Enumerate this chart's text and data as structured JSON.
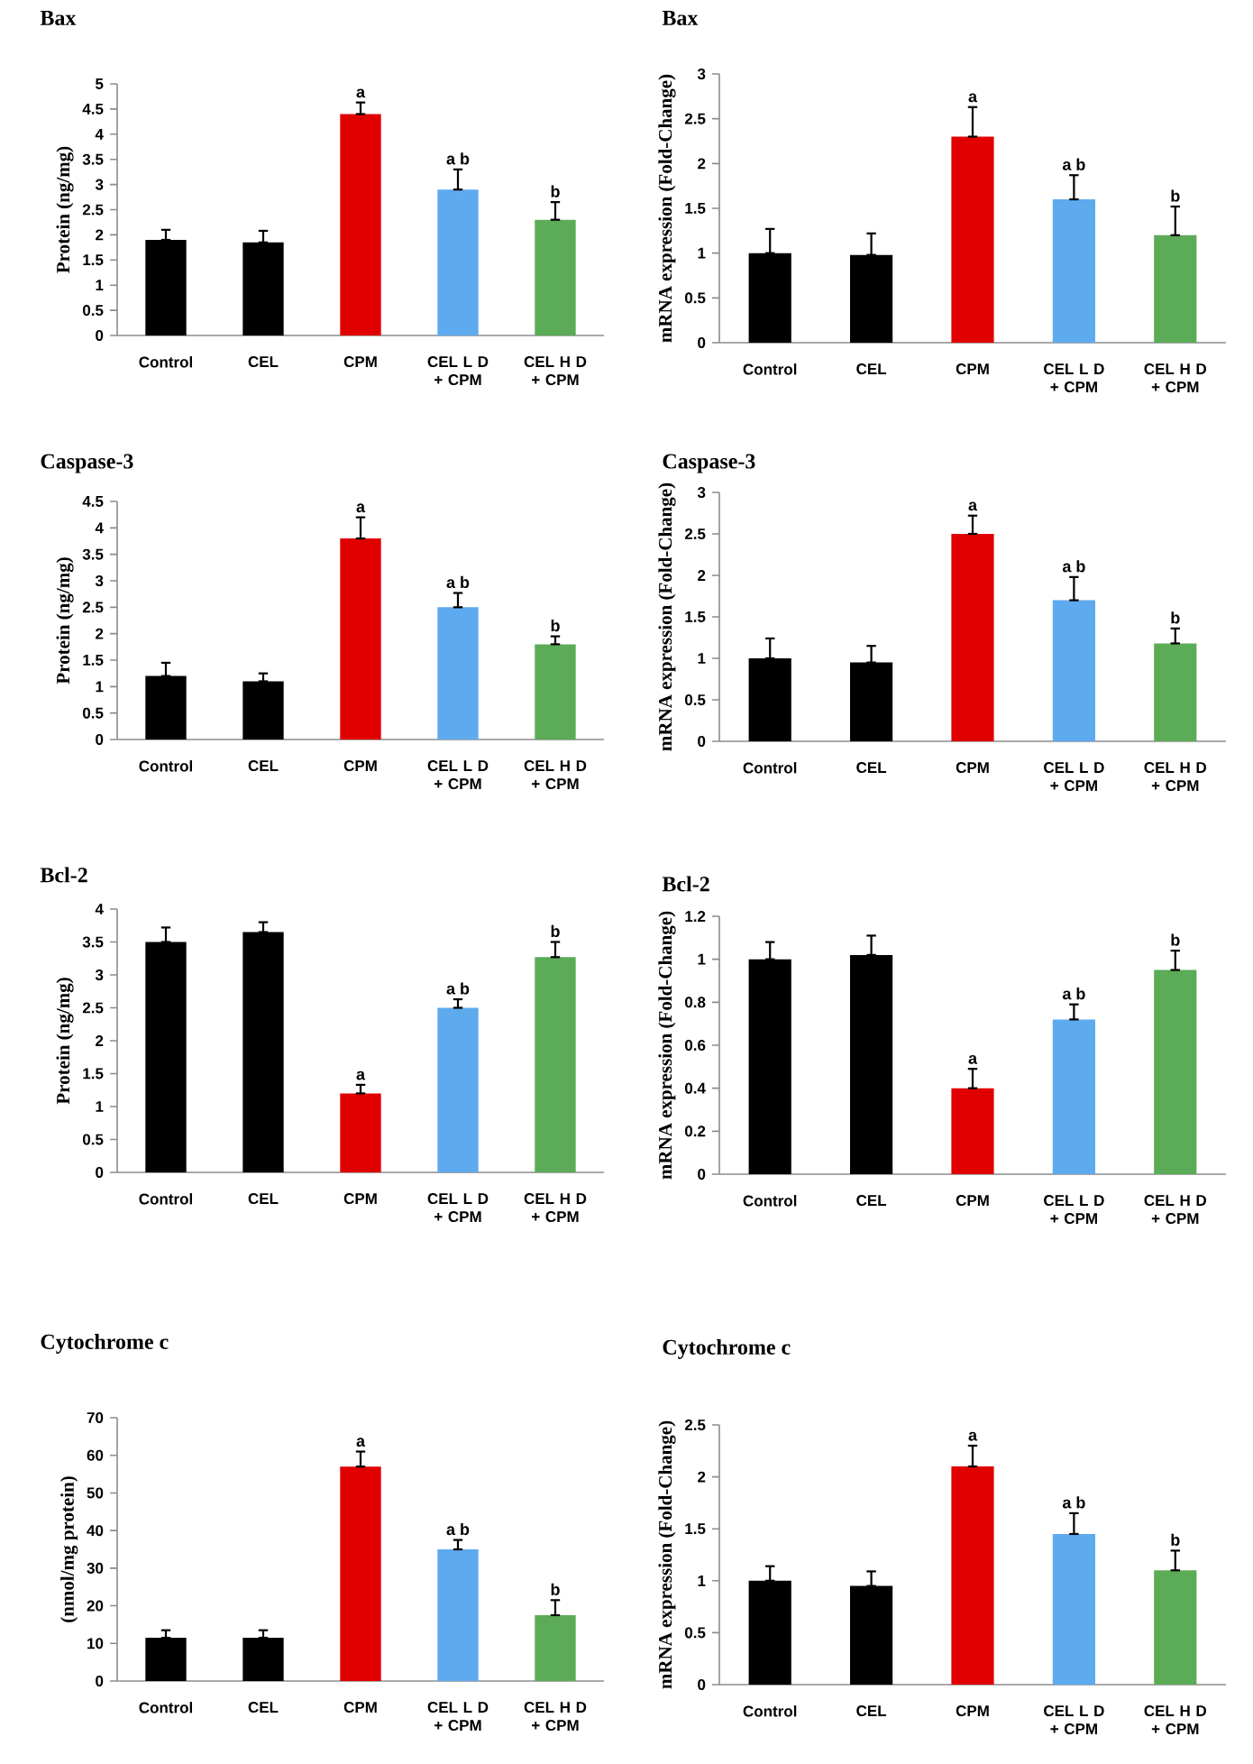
{
  "chart_data": [
    {
      "type": "bar",
      "title": "Bax",
      "ylabel": "Protein (ng/mg)",
      "categories": [
        "Control",
        "CEL",
        "CPM",
        "CEL L D + CPM",
        "CEL H D + CPM"
      ],
      "values": [
        1.9,
        1.85,
        4.4,
        2.9,
        2.3
      ],
      "colors": [
        "#000000",
        "#000000",
        "#e00000",
        "#5eaaee",
        "#5cab57"
      ],
      "errors": [
        [
          1.9,
          2.1
        ],
        [
          1.85,
          2.08
        ],
        [
          4.4,
          4.63
        ],
        [
          2.9,
          3.3
        ],
        [
          2.3,
          2.65
        ]
      ],
      "ylim": [
        0,
        5
      ],
      "yticks": [
        0,
        0.5,
        1,
        1.5,
        2,
        2.5,
        3,
        3.5,
        4,
        4.5,
        5
      ],
      "annotations": [
        {
          "text": "a",
          "x": "CPM",
          "y": 4.63
        },
        {
          "text": "a b",
          "x": "CEL L D + CPM",
          "y": 3.3
        },
        {
          "text": "b",
          "x": "CEL H D + CPM",
          "y": 2.65
        }
      ]
    },
    {
      "type": "bar",
      "title": "Bax",
      "ylabel": "mRNA expression (Fold-Change)",
      "categories": [
        "Control",
        "CEL",
        "CPM",
        "CEL L D + CPM",
        "CEL H D + CPM"
      ],
      "values": [
        1.0,
        0.98,
        2.3,
        1.6,
        1.2
      ],
      "colors": [
        "#000000",
        "#000000",
        "#e00000",
        "#5eaaee",
        "#5cab57"
      ],
      "errors": [
        [
          1.0,
          1.27
        ],
        [
          0.98,
          1.22
        ],
        [
          2.3,
          2.63
        ],
        [
          1.6,
          1.87
        ],
        [
          1.2,
          1.52
        ]
      ],
      "ylim": [
        0,
        3
      ],
      "yticks": [
        0,
        0.5,
        1,
        1.5,
        2,
        2.5,
        3
      ],
      "annotations": [
        {
          "text": "a",
          "x": "CPM",
          "y": 2.63
        },
        {
          "text": "a b",
          "x": "CEL L D + CPM",
          "y": 1.87
        },
        {
          "text": "b",
          "x": "CEL H D + CPM",
          "y": 1.52
        }
      ]
    },
    {
      "type": "bar",
      "title": "Caspase-3",
      "ylabel": "Protein (ng/mg)",
      "categories": [
        "Control",
        "CEL",
        "CPM",
        "CEL L D + CPM",
        "CEL H D + CPM"
      ],
      "values": [
        1.2,
        1.1,
        3.8,
        2.5,
        1.8
      ],
      "colors": [
        "#000000",
        "#000000",
        "#e00000",
        "#5eaaee",
        "#5cab57"
      ],
      "errors": [
        [
          1.2,
          1.45
        ],
        [
          1.1,
          1.25
        ],
        [
          3.8,
          4.2
        ],
        [
          2.5,
          2.77
        ],
        [
          1.8,
          1.95
        ]
      ],
      "ylim": [
        0,
        4.5
      ],
      "yticks": [
        0,
        0.5,
        1,
        1.5,
        2,
        2.5,
        3,
        3.5,
        4,
        4.5
      ],
      "annotations": [
        {
          "text": "a",
          "x": "CPM",
          "y": 4.2
        },
        {
          "text": "a b",
          "x": "CEL L D + CPM",
          "y": 2.77
        },
        {
          "text": "b",
          "x": "CEL H D + CPM",
          "y": 1.95
        }
      ]
    },
    {
      "type": "bar",
      "title": "Caspase-3",
      "ylabel": "mRNA expression (Fold-Change)",
      "categories": [
        "Control",
        "CEL",
        "CPM",
        "CEL L D + CPM",
        "CEL H D + CPM"
      ],
      "values": [
        1.0,
        0.95,
        2.5,
        1.7,
        1.18
      ],
      "colors": [
        "#000000",
        "#000000",
        "#e00000",
        "#5eaaee",
        "#5cab57"
      ],
      "errors": [
        [
          1.0,
          1.24
        ],
        [
          0.95,
          1.15
        ],
        [
          2.5,
          2.72
        ],
        [
          1.7,
          1.98
        ],
        [
          1.18,
          1.36
        ]
      ],
      "ylim": [
        0,
        3
      ],
      "yticks": [
        0,
        0.5,
        1,
        1.5,
        2,
        2.5,
        3
      ],
      "annotations": [
        {
          "text": "a",
          "x": "CPM",
          "y": 2.72
        },
        {
          "text": "a b",
          "x": "CEL L D + CPM",
          "y": 1.98
        },
        {
          "text": "b",
          "x": "CEL H D + CPM",
          "y": 1.36
        }
      ]
    },
    {
      "type": "bar",
      "title": "Bcl-2",
      "ylabel": "Protein (ng/mg)",
      "categories": [
        "Control",
        "CEL",
        "CPM",
        "CEL L D + CPM",
        "CEL H D + CPM"
      ],
      "values": [
        3.5,
        3.65,
        1.2,
        2.5,
        3.27
      ],
      "colors": [
        "#000000",
        "#000000",
        "#e00000",
        "#5eaaee",
        "#5cab57"
      ],
      "errors": [
        [
          3.5,
          3.72
        ],
        [
          3.65,
          3.8
        ],
        [
          1.2,
          1.33
        ],
        [
          2.5,
          2.63
        ],
        [
          3.27,
          3.5
        ]
      ],
      "ylim": [
        0,
        4
      ],
      "yticks": [
        0,
        0.5,
        1,
        1.5,
        2,
        2.5,
        3,
        3.5,
        4
      ],
      "annotations": [
        {
          "text": "a",
          "x": "CPM",
          "y": 1.33
        },
        {
          "text": "a b",
          "x": "CEL L D + CPM",
          "y": 2.63
        },
        {
          "text": "b",
          "x": "CEL H D + CPM",
          "y": 3.5
        }
      ]
    },
    {
      "type": "bar",
      "title": "Bcl-2",
      "ylabel": "mRNA expression (Fold-Change)",
      "categories": [
        "Control",
        "CEL",
        "CPM",
        "CEL L D + CPM",
        "CEL H D + CPM"
      ],
      "values": [
        1.0,
        1.02,
        0.4,
        0.72,
        0.95
      ],
      "colors": [
        "#000000",
        "#000000",
        "#e00000",
        "#5eaaee",
        "#5cab57"
      ],
      "errors": [
        [
          1.0,
          1.08
        ],
        [
          1.02,
          1.11
        ],
        [
          0.4,
          0.49
        ],
        [
          0.72,
          0.79
        ],
        [
          0.95,
          1.04
        ]
      ],
      "ylim": [
        0,
        1.2
      ],
      "yticks": [
        0,
        0.2,
        0.4,
        0.6,
        0.8,
        1,
        1.2
      ],
      "annotations": [
        {
          "text": "a",
          "x": "CPM",
          "y": 0.49
        },
        {
          "text": "a b",
          "x": "CEL L D + CPM",
          "y": 0.79
        },
        {
          "text": "b",
          "x": "CEL H D + CPM",
          "y": 1.04
        }
      ]
    },
    {
      "type": "bar",
      "title": "Cytochrome c",
      "ylabel": "(nmol/mg protein)",
      "categories": [
        "Control",
        "CEL",
        "CPM",
        "CEL L D + CPM",
        "CEL H D + CPM"
      ],
      "values": [
        11.5,
        11.5,
        57,
        35,
        17.5
      ],
      "colors": [
        "#000000",
        "#000000",
        "#e00000",
        "#5eaaee",
        "#5cab57"
      ],
      "errors": [
        [
          11.5,
          13.5
        ],
        [
          11.5,
          13.5
        ],
        [
          57,
          61
        ],
        [
          35,
          37.5
        ],
        [
          17.5,
          21.5
        ]
      ],
      "ylim": [
        0,
        70
      ],
      "yticks": [
        0,
        10,
        20,
        30,
        40,
        50,
        60,
        70
      ],
      "annotations": [
        {
          "text": "a",
          "x": "CPM",
          "y": 61
        },
        {
          "text": "a b",
          "x": "CEL L D + CPM",
          "y": 37.5
        },
        {
          "text": "b",
          "x": "CEL H D + CPM",
          "y": 21.5
        }
      ]
    },
    {
      "type": "bar",
      "title": "Cytochrome c",
      "ylabel": "mRNA expression (Fold-Change)",
      "categories": [
        "Control",
        "CEL",
        "CPM",
        "CEL L D + CPM",
        "CEL H D + CPM"
      ],
      "values": [
        1.0,
        0.95,
        2.1,
        1.45,
        1.1
      ],
      "colors": [
        "#000000",
        "#000000",
        "#e00000",
        "#5eaaee",
        "#5cab57"
      ],
      "errors": [
        [
          1.0,
          1.14
        ],
        [
          0.95,
          1.09
        ],
        [
          2.1,
          2.3
        ],
        [
          1.45,
          1.65
        ],
        [
          1.1,
          1.29
        ]
      ],
      "ylim": [
        0,
        2.5
      ],
      "yticks": [
        0,
        0.5,
        1,
        1.5,
        2,
        2.5
      ],
      "annotations": [
        {
          "text": "a",
          "x": "CPM",
          "y": 2.3
        },
        {
          "text": "a b",
          "x": "CEL L D + CPM",
          "y": 1.65
        },
        {
          "text": "b",
          "x": "CEL H D + CPM",
          "y": 1.29
        }
      ]
    }
  ]
}
